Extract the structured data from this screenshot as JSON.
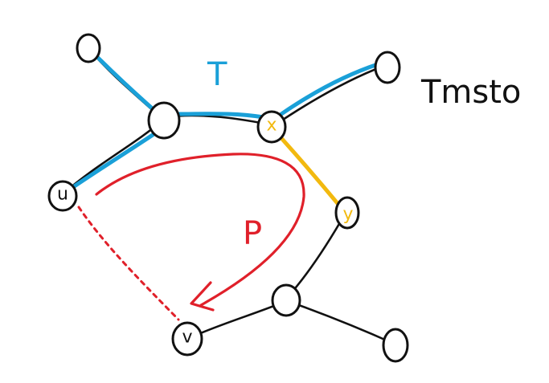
{
  "diagram": {
    "tree_label": "T",
    "path_label": "P",
    "side_label": "Tmsto",
    "node_labels": {
      "u": "u",
      "x": "x",
      "y": "y",
      "v": "v"
    }
  },
  "colors": {
    "tree_edge": "#1aa0d8",
    "swap_edge": "#f2b90f",
    "path": "#e0202a",
    "graph_edge": "#111111"
  }
}
